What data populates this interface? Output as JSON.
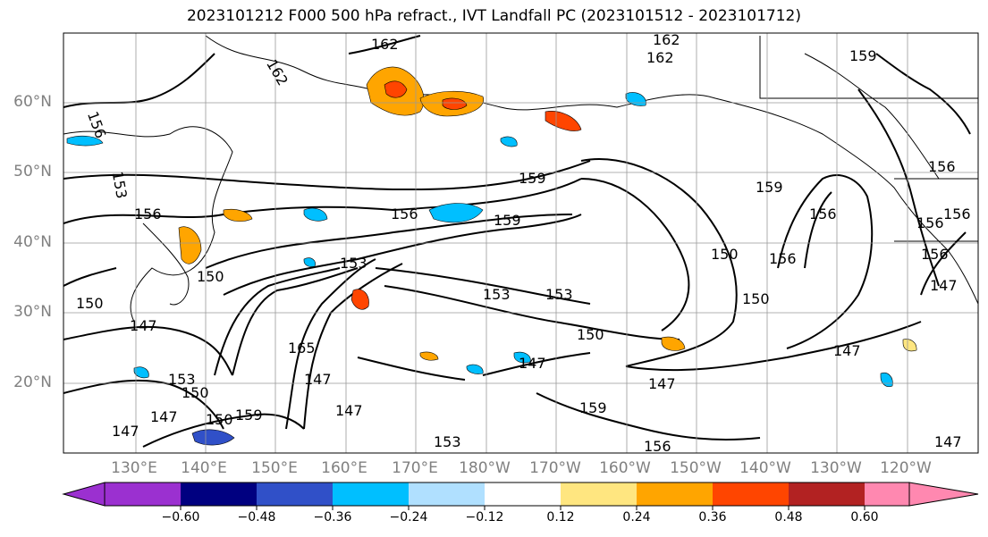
{
  "title": "2023101212 F000 500 hPa refract., IVT Landfall PC (2023101512 - 2023101712)",
  "map": {
    "lat_labels": [
      "60°N",
      "50°N",
      "40°N",
      "30°N",
      "20°N"
    ],
    "lon_labels": [
      "130°E",
      "140°E",
      "150°E",
      "160°E",
      "170°E",
      "180°W",
      "170°W",
      "160°W",
      "150°W",
      "140°W",
      "130°W",
      "120°W"
    ],
    "contour_labels": [
      "162",
      "162",
      "162",
      "162",
      "159",
      "156",
      "156",
      "153",
      "156",
      "156",
      "156",
      "150",
      "159",
      "153",
      "159",
      "156",
      "150",
      "150",
      "153",
      "153",
      "150",
      "147",
      "147",
      "153",
      "165",
      "147",
      "150",
      "147",
      "147",
      "147",
      "159",
      "159",
      "153",
      "156",
      "156",
      "147",
      "150",
      "147",
      "156",
      "159",
      "150",
      "147",
      "147",
      "156"
    ]
  },
  "colorbar": {
    "ticks": [
      "−0.60",
      "−0.48",
      "−0.36",
      "−0.24",
      "−0.12",
      "0.12",
      "0.24",
      "0.36",
      "0.48",
      "0.60"
    ],
    "colors": [
      "#9b30d0",
      "#000080",
      "#3050c8",
      "#00bfff",
      "#b0e0ff",
      "#ffffff",
      "#ffe680",
      "#ffa500",
      "#ff4500",
      "#b22222",
      "#ff88b0"
    ]
  }
}
